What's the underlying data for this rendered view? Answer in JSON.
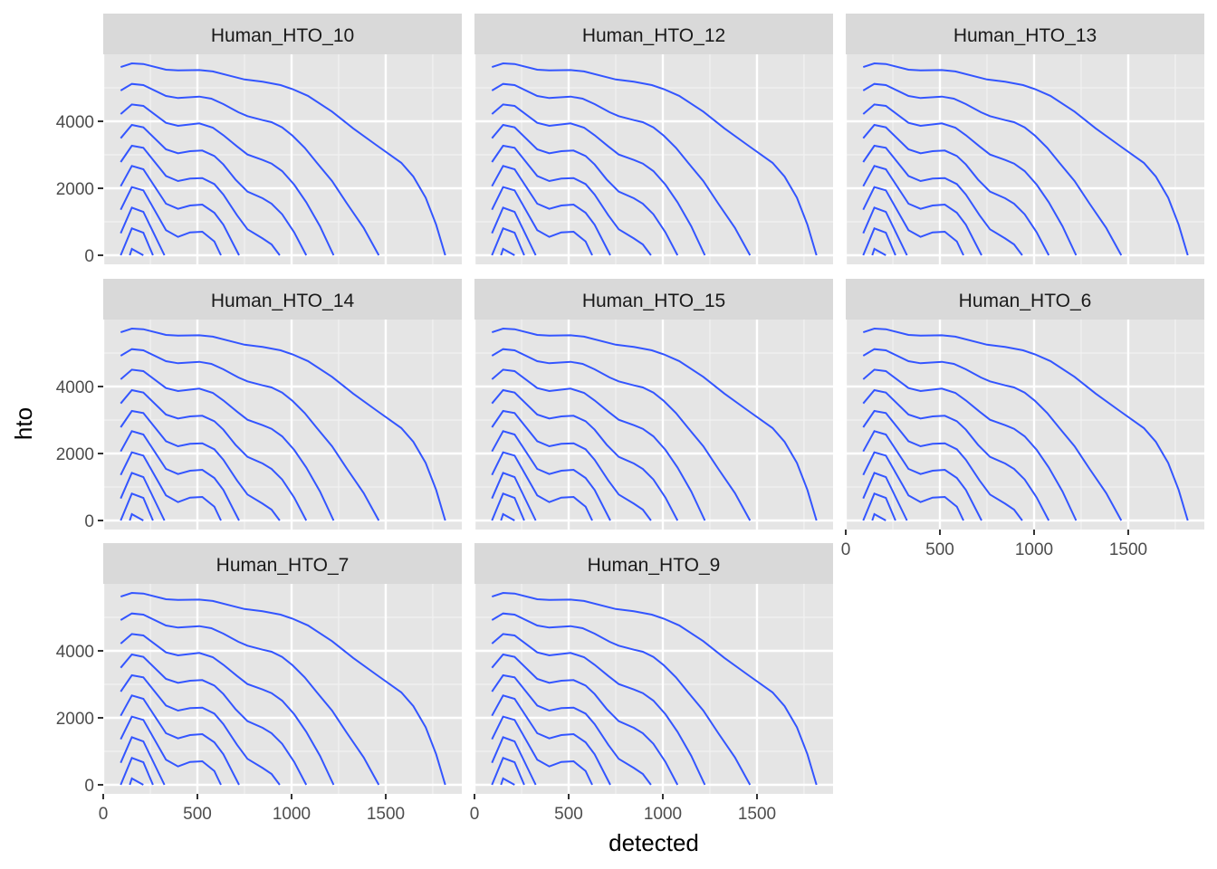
{
  "chart_data": {
    "type": "line",
    "facet_type": "wrap",
    "xlabel": "detected",
    "ylabel": "hto",
    "xlim": [
      0,
      1904
    ],
    "ylim": [
      -270,
      6000
    ],
    "x_ticks": [
      0,
      500,
      1000,
      1500
    ],
    "y_ticks": [
      0,
      2000,
      4000
    ],
    "x_tick_labels": [
      "0",
      "500",
      "1000",
      "1500"
    ],
    "y_tick_labels": [
      "0",
      "2000",
      "4000"
    ],
    "grid": true,
    "line_color": "#3355ff",
    "panel_background": "#e5e5e5",
    "strip_background": "#d9d9d9",
    "panels": [
      "Human_HTO_10",
      "Human_HTO_12",
      "Human_HTO_13",
      "Human_HTO_14",
      "Human_HTO_15",
      "Human_HTO_6",
      "Human_HTO_7",
      "Human_HTO_9"
    ],
    "series": [
      {
        "x": [
          93,
          152,
          213,
          333,
          397,
          510,
          582,
          750,
          846,
          942,
          1006,
          1087,
          1215,
          1327,
          1455,
          1583,
          1647,
          1712,
          1768,
          1816
        ],
        "y": [
          5620,
          5730,
          5710,
          5540,
          5520,
          5530,
          5490,
          5250,
          5180,
          5080,
          4960,
          4760,
          4290,
          3790,
          3270,
          2760,
          2350,
          1720,
          910,
          0
        ]
      },
      {
        "x": [
          93,
          152,
          213,
          333,
          397,
          510,
          574,
          638,
          718,
          766,
          846,
          894,
          950,
          1006,
          1070,
          1135,
          1215,
          1295,
          1383,
          1463
        ],
        "y": [
          4919,
          5117,
          5081,
          4757,
          4694,
          4739,
          4676,
          4513,
          4270,
          4153,
          4036,
          3973,
          3820,
          3567,
          3207,
          2757,
          2216,
          1540,
          820,
          0
        ]
      },
      {
        "x": [
          93,
          152,
          213,
          333,
          397,
          510,
          582,
          638,
          710,
          766,
          846,
          894,
          950,
          1014,
          1078,
          1151,
          1223
        ],
        "y": [
          4216,
          4504,
          4459,
          3955,
          3865,
          3937,
          3811,
          3585,
          3252,
          3009,
          2847,
          2739,
          2513,
          2108,
          1585,
          865,
          0
        ]
      },
      {
        "x": [
          93,
          152,
          213,
          333,
          397,
          461,
          526,
          590,
          638,
          702,
          766,
          846,
          894,
          950,
          1014,
          1078
        ],
        "y": [
          3495,
          3892,
          3820,
          3162,
          3045,
          3108,
          3126,
          2964,
          2712,
          2261,
          1901,
          1703,
          1540,
          1225,
          684,
          0
        ]
      },
      {
        "x": [
          93,
          152,
          213,
          333,
          397,
          461,
          526,
          590,
          638,
          710,
          766,
          846,
          894,
          937
        ],
        "y": [
          2784,
          3270,
          3207,
          2369,
          2216,
          2288,
          2306,
          2126,
          1811,
          1198,
          775,
          504,
          324,
          0
        ]
      },
      {
        "x": [
          93,
          152,
          213,
          333,
          397,
          461,
          526,
          590,
          638,
          721
        ],
        "y": [
          2063,
          2667,
          2567,
          1540,
          1387,
          1486,
          1513,
          1270,
          910,
          0
        ]
      },
      {
        "x": [
          93,
          152,
          213,
          333,
          397,
          461,
          526,
          590,
          625
        ],
        "y": [
          1360,
          2036,
          1937,
          748,
          549,
          684,
          702,
          414,
          0
        ]
      },
      {
        "x": [
          93,
          152,
          213,
          325
        ],
        "y": [
          658,
          1423,
          1297,
          0
        ]
      },
      {
        "x": [
          93,
          152,
          213,
          264
        ],
        "y": [
          0,
          802,
          676,
          0
        ]
      },
      {
        "x": [
          141,
          152,
          213
        ],
        "y": [
          0,
          189,
          0
        ]
      }
    ]
  }
}
